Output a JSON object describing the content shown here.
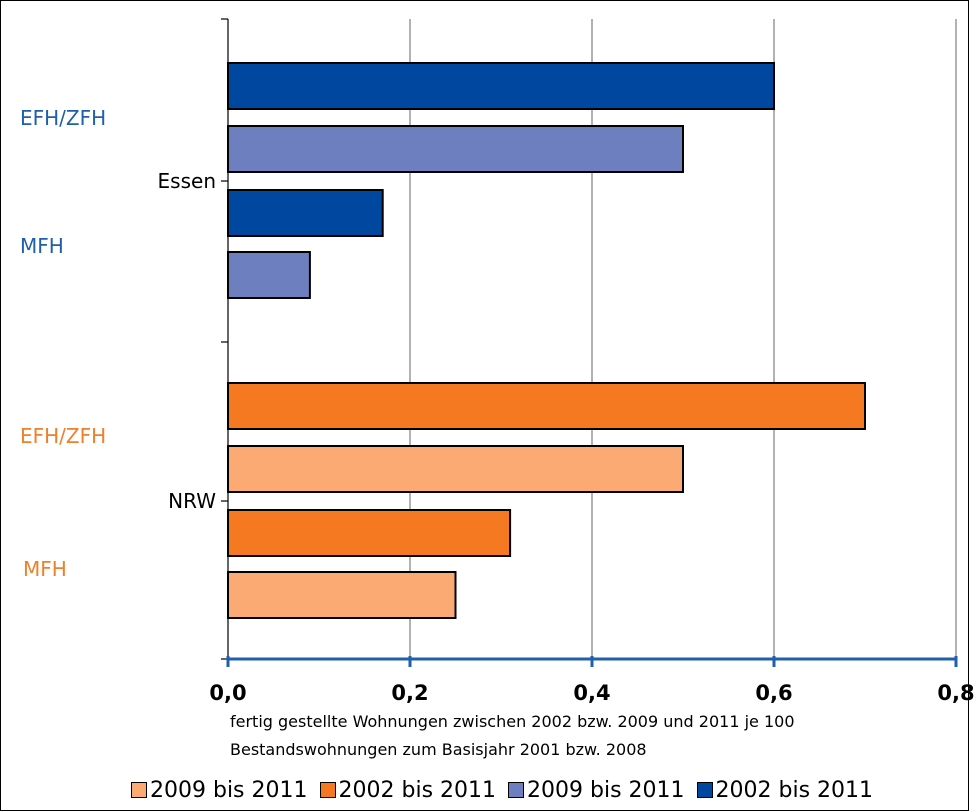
{
  "chart_data": {
    "type": "bar",
    "orientation": "horizontal",
    "xlim": [
      0,
      0.8
    ],
    "x_ticks": [
      "0,0",
      "0,2",
      "0,4",
      "0,6",
      "0,8"
    ],
    "x_tick_values": [
      0,
      0.2,
      0.4,
      0.6,
      0.8
    ],
    "grid": "vertical",
    "xlabel": "fertig gestellte Wohnungen zwischen 2002 bzw. 2009 und 2011 je 100 Bestandswohnungen zum Basisjahr 2001 bzw. 2008",
    "groups": [
      {
        "name": "Essen",
        "subgroups": [
          {
            "name": "EFH/ZFH",
            "color": "#1f5fae",
            "bars": [
              {
                "series": "2002 bis 2011",
                "value": 0.6,
                "color": "#0047a0"
              },
              {
                "series": "2009 bis 2011",
                "value": 0.5,
                "color": "#6e7fbf"
              }
            ]
          },
          {
            "name": "MFH",
            "color": "#1f5fae",
            "bars": [
              {
                "series": "2002 bis 2011",
                "value": 0.17,
                "color": "#0047a0"
              },
              {
                "series": "2009 bis 2011",
                "value": 0.09,
                "color": "#6e7fbf"
              }
            ]
          }
        ]
      },
      {
        "name": "NRW",
        "subgroups": [
          {
            "name": "EFH/ZFH",
            "color": "#f07f2a",
            "bars": [
              {
                "series": "2002 bis 2011",
                "value": 0.7,
                "color": "#f47920"
              },
              {
                "series": "2009 bis 2011",
                "value": 0.5,
                "color": "#fbaa73"
              }
            ]
          },
          {
            "name": "MFH",
            "color": "#f07f2a",
            "bars": [
              {
                "series": "2002 bis 2011",
                "value": 0.31,
                "color": "#f47920"
              },
              {
                "series": "2009 bis 2011",
                "value": 0.25,
                "color": "#fbaa73"
              }
            ]
          }
        ]
      }
    ],
    "legend": [
      {
        "label": "2009 bis 2011",
        "color": "#fbaa73"
      },
      {
        "label": "2002 bis 2011",
        "color": "#f47920"
      },
      {
        "label": "2009 bis 2011",
        "color": "#6e7fbf"
      },
      {
        "label": "2002 bis 2011",
        "color": "#0047a0"
      }
    ],
    "legend_position": "bottom",
    "axis_color": "#1f5fae"
  }
}
